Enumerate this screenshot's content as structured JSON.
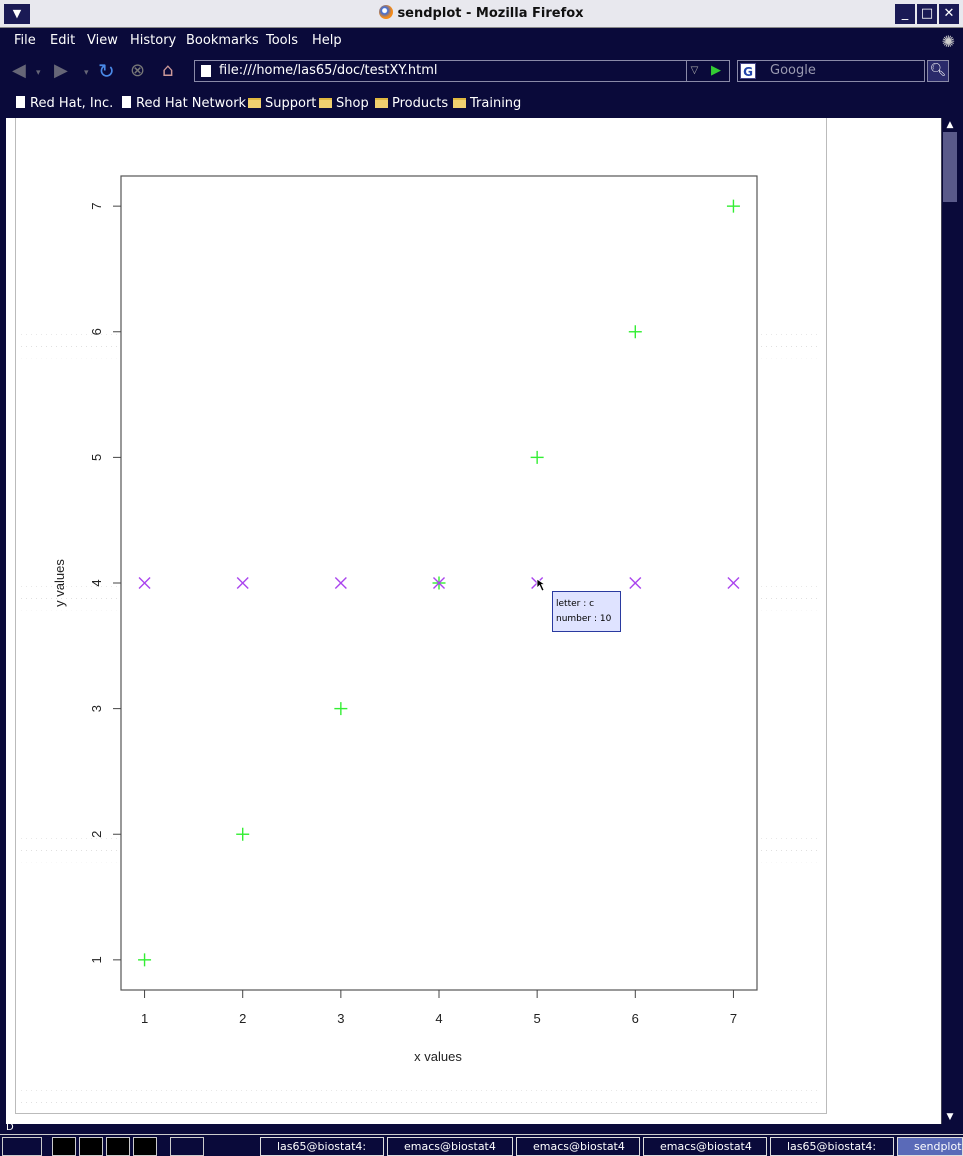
{
  "window": {
    "title": "sendplot - Mozilla Firefox",
    "menu_icon": "window-menu-icon",
    "controls": [
      "_",
      "□",
      "✕"
    ]
  },
  "menu": {
    "items": [
      "File",
      "Edit",
      "View",
      "History",
      "Bookmarks",
      "Tools",
      "Help"
    ]
  },
  "nav": {
    "url": "file:///home/las65/doc/testXY.html",
    "search_placeholder": "Google"
  },
  "bookmarks": [
    {
      "label": "Red Hat, Inc.",
      "icon": "page-icon"
    },
    {
      "label": "Red Hat Network",
      "icon": "page-icon"
    },
    {
      "label": "Support",
      "icon": "folder-icon"
    },
    {
      "label": "Shop",
      "icon": "folder-icon"
    },
    {
      "label": "Products",
      "icon": "folder-icon"
    },
    {
      "label": "Training",
      "icon": "folder-icon"
    }
  ],
  "status": {
    "text": "D"
  },
  "taskbar": [
    {
      "label": "las65@biostat4:"
    },
    {
      "label": "emacs@biostat4"
    },
    {
      "label": "emacs@biostat4"
    },
    {
      "label": "emacs@biostat4"
    },
    {
      "label": "las65@biostat4:"
    },
    {
      "label": "sendplot"
    }
  ],
  "tooltip": {
    "line1": "letter : c",
    "line2": "number : 10"
  },
  "chart_data": {
    "type": "scatter",
    "xlabel": "x values",
    "ylabel": "y values",
    "xlim": [
      0.76,
      7.24
    ],
    "ylim": [
      0.76,
      7.24
    ],
    "xticks": [
      "1",
      "2",
      "3",
      "4",
      "5",
      "6",
      "7"
    ],
    "yticks": [
      "1",
      "2",
      "3",
      "4",
      "5",
      "6",
      "7"
    ],
    "series": [
      {
        "marker": "plus",
        "color": "#33ee33",
        "x": [
          1,
          2,
          3,
          4,
          5,
          6,
          7
        ],
        "y": [
          1,
          2,
          3,
          4,
          5,
          6,
          7
        ]
      },
      {
        "marker": "cross",
        "color": "#aa44ee",
        "x": [
          1,
          2,
          3,
          4,
          5,
          6,
          7
        ],
        "y": [
          4,
          4,
          4,
          4,
          4,
          4,
          4
        ]
      }
    ]
  }
}
